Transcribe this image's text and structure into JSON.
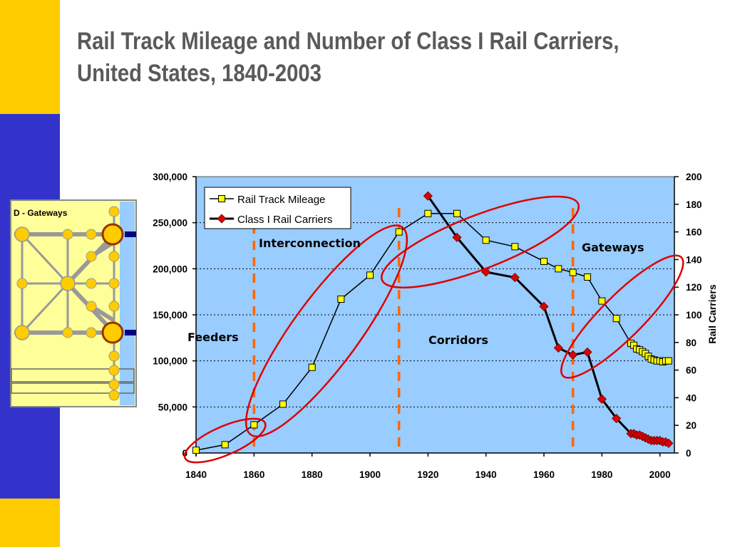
{
  "slide": {
    "title": "Rail Track Mileage and Number of Class I Rail Carriers, United States, 1840-2003",
    "colors": {
      "stripe": "#FFCC00",
      "band": "#3333CC",
      "title": "#5a5a5a"
    }
  },
  "inset": {
    "label": "D - Gateways",
    "colors": {
      "background": "#FFFF99",
      "accent": "#99CCFF",
      "node": "#FFCC00",
      "edge": "#999999",
      "major_ring": "#993300"
    }
  },
  "chart_data": {
    "type": "line",
    "title": "",
    "x": {
      "min": 1840,
      "max": 2005,
      "ticks": [
        1840,
        1860,
        1880,
        1900,
        1920,
        1940,
        1960,
        1980,
        2000
      ]
    },
    "y_left": {
      "min": 0,
      "max": 300000,
      "ticks": [
        0,
        50000,
        100000,
        150000,
        200000,
        250000,
        300000
      ],
      "tick_labels": [
        "0",
        "50,000",
        "100,000",
        "150,000",
        "200,000",
        "250,000",
        "300,000"
      ]
    },
    "y_right": {
      "label": "Rail Carriers",
      "min": 0,
      "max": 200,
      "ticks": [
        0,
        20,
        40,
        60,
        80,
        100,
        120,
        140,
        160,
        180,
        200
      ],
      "tick_labels": [
        "0",
        "20",
        "40",
        "60",
        "80",
        "100",
        "120",
        "140",
        "160",
        "180",
        "200"
      ]
    },
    "grid": "horizontal-dotted",
    "plot_background": "#99CCFF",
    "legend": {
      "placement": "top-left"
    },
    "series": [
      {
        "name": "Rail Track Mileage",
        "axis": "left",
        "marker": "square",
        "color": "#FFFF00",
        "line_color": "#000000",
        "points": [
          [
            1840,
            3000
          ],
          [
            1850,
            9000
          ],
          [
            1860,
            30600
          ],
          [
            1870,
            53000
          ],
          [
            1880,
            93000
          ],
          [
            1890,
            167000
          ],
          [
            1900,
            193000
          ],
          [
            1910,
            240000
          ],
          [
            1920,
            260000
          ],
          [
            1930,
            260000
          ],
          [
            1940,
            231000
          ],
          [
            1950,
            224000
          ],
          [
            1960,
            208000
          ],
          [
            1965,
            200000
          ],
          [
            1970,
            196000
          ],
          [
            1975,
            191000
          ],
          [
            1980,
            165000
          ],
          [
            1985,
            146000
          ],
          [
            1990,
            119000
          ],
          [
            1991,
            117000
          ],
          [
            1992,
            113000
          ],
          [
            1993,
            112000
          ],
          [
            1994,
            110000
          ],
          [
            1995,
            108000
          ],
          [
            1996,
            105000
          ],
          [
            1997,
            102000
          ],
          [
            1998,
            101000
          ],
          [
            1999,
            100000
          ],
          [
            2000,
            100000
          ],
          [
            2001,
            99000
          ],
          [
            2002,
            100000
          ],
          [
            2003,
            100000
          ]
        ]
      },
      {
        "name": "Class I Rail Carriers",
        "axis": "right",
        "marker": "diamond",
        "color": "#DD0000",
        "line_color": "#000000",
        "points": [
          [
            1920,
            186
          ],
          [
            1930,
            156
          ],
          [
            1940,
            131
          ],
          [
            1950,
            127
          ],
          [
            1960,
            106
          ],
          [
            1965,
            76
          ],
          [
            1970,
            71
          ],
          [
            1975,
            73
          ],
          [
            1980,
            39
          ],
          [
            1985,
            25
          ],
          [
            1990,
            14
          ],
          [
            1991,
            14
          ],
          [
            1992,
            13
          ],
          [
            1993,
            13
          ],
          [
            1994,
            12
          ],
          [
            1995,
            11
          ],
          [
            1996,
            10
          ],
          [
            1997,
            9
          ],
          [
            1998,
            9
          ],
          [
            1999,
            9
          ],
          [
            2000,
            9
          ],
          [
            2001,
            8
          ],
          [
            2002,
            8
          ],
          [
            2003,
            7
          ]
        ]
      }
    ],
    "phase_dividers": [
      1860,
      1910,
      1970
    ],
    "divider_color": "#FF6600",
    "phases": [
      {
        "label": "Feeders",
        "ellipse": {
          "x_range": [
            1838,
            1862
          ],
          "y_range": [
            -3000,
            30000
          ]
        }
      },
      {
        "label": "Interconnection",
        "ellipse": {
          "x_range": [
            1860,
            1910
          ],
          "y_range": [
            25000,
            240000
          ]
        }
      },
      {
        "label": "Corridors",
        "ellipse": {
          "x_range": [
            1906,
            1970
          ],
          "y_range": [
            190000,
            268000
          ]
        }
      },
      {
        "label": "Gateways",
        "ellipse": {
          "x_range": [
            1968,
            2006
          ],
          "y_range": [
            88000,
            208000
          ]
        }
      }
    ],
    "ellipse_color": "#DD0000"
  }
}
